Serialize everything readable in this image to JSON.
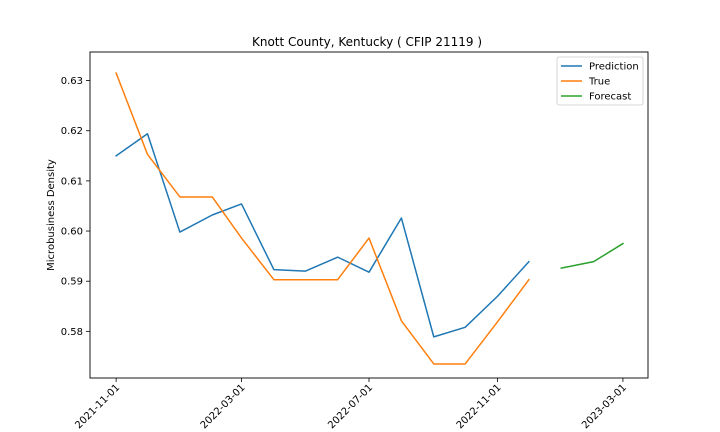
{
  "chart_data": {
    "type": "line",
    "title": "Knott County, Kentucky ( CFIP 21119 )",
    "xlabel": "",
    "ylabel": "Microbusiness Density",
    "x_type": "date",
    "xlim": [
      "2021-10-07",
      "2023-03-25"
    ],
    "ylim": [
      0.5707,
      0.6357
    ],
    "x_ticks": [
      "2021-11-01",
      "2022-03-01",
      "2022-07-01",
      "2022-11-01",
      "2023-03-01"
    ],
    "y_ticks": [
      0.58,
      0.59,
      0.6,
      0.61,
      0.62,
      0.63
    ],
    "y_tick_labels": [
      "0.58",
      "0.59",
      "0.60",
      "0.61",
      "0.62",
      "0.63"
    ],
    "grid": false,
    "legend_position": "top-right",
    "series": [
      {
        "name": "Prediction",
        "color": "#1f77b4",
        "points": [
          {
            "x": "2021-11-01",
            "y": 0.615
          },
          {
            "x": "2021-12-01",
            "y": 0.6194
          },
          {
            "x": "2022-01-01",
            "y": 0.5998
          },
          {
            "x": "2022-02-01",
            "y": 0.6032
          },
          {
            "x": "2022-03-01",
            "y": 0.6054
          },
          {
            "x": "2022-04-01",
            "y": 0.5923
          },
          {
            "x": "2022-05-01",
            "y": 0.592
          },
          {
            "x": "2022-06-01",
            "y": 0.5948
          },
          {
            "x": "2022-07-01",
            "y": 0.5918
          },
          {
            "x": "2022-08-01",
            "y": 0.6026
          },
          {
            "x": "2022-09-01",
            "y": 0.5789
          },
          {
            "x": "2022-10-01",
            "y": 0.5808
          },
          {
            "x": "2022-11-01",
            "y": 0.587
          },
          {
            "x": "2022-12-01",
            "y": 0.5939
          }
        ]
      },
      {
        "name": "True",
        "color": "#ff7f0e",
        "points": [
          {
            "x": "2021-11-01",
            "y": 0.6315
          },
          {
            "x": "2021-12-01",
            "y": 0.6153
          },
          {
            "x": "2022-01-01",
            "y": 0.6068
          },
          {
            "x": "2022-02-01",
            "y": 0.6068
          },
          {
            "x": "2022-03-01",
            "y": 0.5986
          },
          {
            "x": "2022-04-01",
            "y": 0.5903
          },
          {
            "x": "2022-05-01",
            "y": 0.5903
          },
          {
            "x": "2022-06-01",
            "y": 0.5903
          },
          {
            "x": "2022-07-01",
            "y": 0.5986
          },
          {
            "x": "2022-08-01",
            "y": 0.5821
          },
          {
            "x": "2022-09-01",
            "y": 0.5735
          },
          {
            "x": "2022-10-01",
            "y": 0.5735
          },
          {
            "x": "2022-11-01",
            "y": 0.5819
          },
          {
            "x": "2022-12-01",
            "y": 0.5903
          }
        ]
      },
      {
        "name": "Forecast",
        "color": "#2ca02c",
        "points": [
          {
            "x": "2023-01-01",
            "y": 0.5926
          },
          {
            "x": "2023-02-01",
            "y": 0.5939
          },
          {
            "x": "2023-03-01",
            "y": 0.5975
          }
        ]
      }
    ]
  }
}
